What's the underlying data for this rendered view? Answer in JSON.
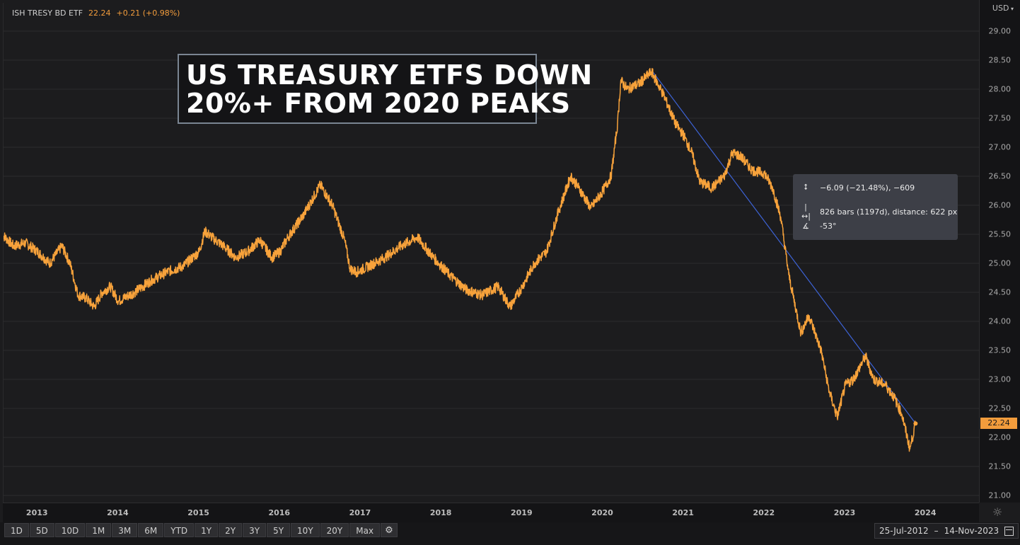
{
  "header": {
    "ticker_name": "ISH TRESY BD ETF",
    "last_price": "22.24",
    "change": "+0.21 (+0.98%)"
  },
  "headline": {
    "line1": "US TREASURY ETFS DOWN",
    "line2": "20%+ FROM 2020 PEAKS"
  },
  "currency": "USD",
  "price_tag": "22.24",
  "measure": {
    "price_change": "−6.09 (−21.48%), −609",
    "bars": "826 bars (1197d), distance: 622 px",
    "angle": "-53°"
  },
  "range_buttons": [
    "1D",
    "5D",
    "10D",
    "1M",
    "3M",
    "6M",
    "YTD",
    "1Y",
    "2Y",
    "3Y",
    "5Y",
    "10Y",
    "20Y",
    "Max"
  ],
  "date_range": {
    "start": "25-Jul-2012",
    "separator": "–",
    "end": "14-Nov-2023"
  },
  "colors": {
    "line": "#f7a23b",
    "trendline": "#3d63d6",
    "background": "#1c1c1e",
    "grid": "#2b2b2e"
  },
  "icons": {
    "currency_dropdown": "chevron-down-icon",
    "settings": "sun-gear-icon",
    "calendar": "calendar-icon",
    "measure_price": "vertical-range-icon",
    "measure_bars": "horizontal-range-icon",
    "measure_angle": "angle-icon"
  },
  "chart_data": {
    "type": "line",
    "title": "",
    "xlabel": "",
    "ylabel": "",
    "x_ticks": [
      "2013",
      "2014",
      "2015",
      "2016",
      "2017",
      "2018",
      "2019",
      "2020",
      "2021",
      "2022",
      "2023",
      "2024"
    ],
    "y_ticks": [
      "21.00",
      "21.50",
      "22.00",
      "22.50",
      "23.00",
      "23.50",
      "24.00",
      "24.50",
      "25.00",
      "25.50",
      "26.00",
      "26.50",
      "27.00",
      "27.50",
      "28.00",
      "28.50",
      "29.00"
    ],
    "ylim": [
      21.0,
      29.0
    ],
    "xlim": [
      2012.56,
      2024.62
    ],
    "grid": true,
    "series": [
      {
        "values_x": [
          2012.56,
          2012.7,
          2012.85,
          2013.0,
          2013.15,
          2013.3,
          2013.4,
          2013.5,
          2013.6,
          2013.7,
          2013.8,
          2013.9,
          2014.0,
          2014.2,
          2014.4,
          2014.6,
          2014.8,
          2015.0,
          2015.07,
          2015.2,
          2015.3,
          2015.45,
          2015.6,
          2015.75,
          2015.9,
          2016.0,
          2016.1,
          2016.3,
          2016.5,
          2016.65,
          2016.8,
          2016.87,
          2016.95,
          2017.1,
          2017.3,
          2017.5,
          2017.7,
          2017.9,
          2018.1,
          2018.3,
          2018.5,
          2018.7,
          2018.85,
          2019.0,
          2019.15,
          2019.3,
          2019.45,
          2019.6,
          2019.7,
          2019.85,
          2020.0,
          2020.1,
          2020.18,
          2020.22,
          2020.3,
          2020.45,
          2020.6,
          2020.75,
          2020.9,
          2021.0,
          2021.1,
          2021.2,
          2021.35,
          2021.5,
          2021.6,
          2021.7,
          2021.85,
          2022.0,
          2022.1,
          2022.2,
          2022.3,
          2022.45,
          2022.55,
          2022.7,
          2022.8,
          2022.9,
          2023.0,
          2023.1,
          2023.25,
          2023.35,
          2023.5,
          2023.6,
          2023.7,
          2023.8,
          2023.87
        ],
        "values_y": [
          25.5,
          25.3,
          25.35,
          25.2,
          25.0,
          25.3,
          25.0,
          24.45,
          24.4,
          24.25,
          24.5,
          24.6,
          24.35,
          24.5,
          24.7,
          24.85,
          24.95,
          25.2,
          25.55,
          25.4,
          25.3,
          25.1,
          25.2,
          25.4,
          25.1,
          25.2,
          25.45,
          25.85,
          26.35,
          26.0,
          25.4,
          24.9,
          24.85,
          24.95,
          25.1,
          25.3,
          25.45,
          25.1,
          24.8,
          24.55,
          24.45,
          24.6,
          24.25,
          24.6,
          25.0,
          25.2,
          25.9,
          26.5,
          26.3,
          25.95,
          26.25,
          26.5,
          27.4,
          28.15,
          28.0,
          28.1,
          28.3,
          27.9,
          27.4,
          27.2,
          26.9,
          26.4,
          26.3,
          26.5,
          26.9,
          26.85,
          26.6,
          26.55,
          26.3,
          25.8,
          24.8,
          23.8,
          24.1,
          23.5,
          22.8,
          22.35,
          22.9,
          23.0,
          23.4,
          23.0,
          22.9,
          22.7,
          22.4,
          21.8,
          22.24
        ]
      }
    ],
    "trendline": {
      "from": {
        "x": 2020.6,
        "y": 28.33
      },
      "to": {
        "x": 2023.87,
        "y": 22.24
      }
    }
  }
}
